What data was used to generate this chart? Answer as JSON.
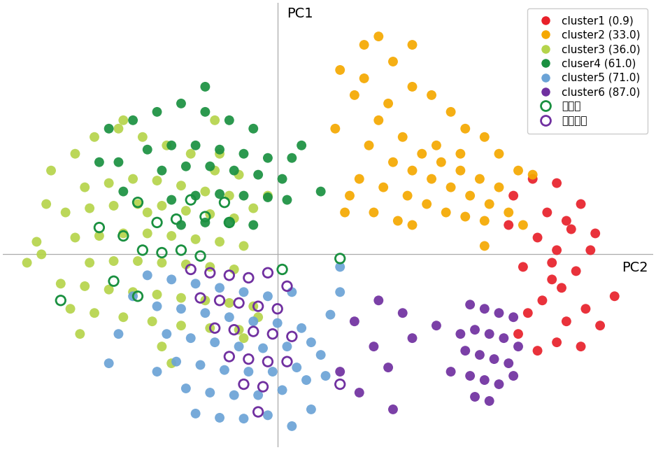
{
  "clusters": [
    {
      "name": "cluster1 (0.9)",
      "color": "#e8202a",
      "points": [
        [
          4.5,
          0.9
        ],
        [
          5.0,
          0.85
        ],
        [
          5.5,
          0.6
        ],
        [
          4.8,
          0.5
        ],
        [
          5.2,
          0.4
        ],
        [
          5.3,
          0.3
        ],
        [
          4.6,
          0.2
        ],
        [
          5.0,
          0.05
        ],
        [
          5.7,
          0.05
        ],
        [
          4.9,
          -0.1
        ],
        [
          4.3,
          -0.15
        ],
        [
          5.4,
          -0.2
        ],
        [
          5.1,
          -0.4
        ],
        [
          4.7,
          -0.55
        ],
        [
          5.6,
          -0.65
        ],
        [
          4.4,
          -0.7
        ],
        [
          5.2,
          -0.8
        ],
        [
          5.9,
          -0.85
        ],
        [
          4.2,
          -0.95
        ],
        [
          5.0,
          -1.05
        ],
        [
          5.5,
          -1.1
        ],
        [
          4.6,
          -1.15
        ],
        [
          4.9,
          -0.3
        ],
        [
          4.1,
          0.7
        ],
        [
          5.8,
          0.25
        ],
        [
          6.2,
          -0.5
        ],
        [
          4.0,
          0.35
        ]
      ]
    },
    {
      "name": "cluster2 (33.0)",
      "color": "#f5a800",
      "points": [
        [
          0.5,
          2.2
        ],
        [
          1.0,
          2.5
        ],
        [
          1.6,
          2.3
        ],
        [
          2.0,
          2.0
        ],
        [
          2.4,
          1.9
        ],
        [
          2.8,
          1.7
        ],
        [
          3.1,
          1.5
        ],
        [
          3.5,
          1.4
        ],
        [
          3.8,
          1.2
        ],
        [
          0.8,
          1.9
        ],
        [
          1.3,
          1.6
        ],
        [
          1.8,
          1.4
        ],
        [
          2.2,
          1.2
        ],
        [
          2.6,
          1.1
        ],
        [
          3.0,
          1.0
        ],
        [
          3.4,
          0.9
        ],
        [
          3.8,
          0.8
        ],
        [
          1.1,
          1.3
        ],
        [
          1.6,
          1.1
        ],
        [
          2.0,
          1.0
        ],
        [
          2.4,
          0.9
        ],
        [
          2.8,
          0.8
        ],
        [
          3.2,
          0.7
        ],
        [
          3.6,
          0.6
        ],
        [
          0.9,
          0.9
        ],
        [
          1.4,
          0.8
        ],
        [
          1.9,
          0.7
        ],
        [
          2.3,
          0.6
        ],
        [
          2.7,
          0.5
        ],
        [
          3.1,
          0.45
        ],
        [
          1.2,
          0.5
        ],
        [
          1.7,
          0.4
        ],
        [
          0.6,
          0.5
        ],
        [
          3.5,
          0.4
        ],
        [
          4.0,
          0.5
        ],
        [
          4.3,
          0.35
        ],
        [
          0.4,
          1.5
        ],
        [
          1.3,
          2.6
        ],
        [
          0.7,
          0.7
        ],
        [
          2.5,
          1.3
        ],
        [
          4.2,
          1.0
        ],
        [
          3.5,
          0.1
        ],
        [
          2.0,
          0.35
        ],
        [
          4.5,
          0.95
        ],
        [
          1.0,
          2.1
        ],
        [
          2.0,
          2.5
        ],
        [
          1.5,
          1.8
        ],
        [
          3.0,
          1.2
        ]
      ]
    },
    {
      "name": "cluster3 (36.0)",
      "color": "#b5d44b",
      "points": [
        [
          -5.5,
          1.0
        ],
        [
          -5.0,
          1.2
        ],
        [
          -4.6,
          1.4
        ],
        [
          -4.1,
          1.5
        ],
        [
          -3.6,
          1.4
        ],
        [
          -3.1,
          1.3
        ],
        [
          -2.6,
          1.2
        ],
        [
          -2.1,
          1.0
        ],
        [
          -1.6,
          0.95
        ],
        [
          -4.8,
          0.8
        ],
        [
          -4.3,
          0.85
        ],
        [
          -3.8,
          0.9
        ],
        [
          -3.3,
          0.88
        ],
        [
          -2.8,
          0.82
        ],
        [
          -2.3,
          0.75
        ],
        [
          -1.8,
          0.7
        ],
        [
          -5.2,
          0.5
        ],
        [
          -4.7,
          0.55
        ],
        [
          -4.2,
          0.58
        ],
        [
          -3.7,
          0.6
        ],
        [
          -3.2,
          0.58
        ],
        [
          -2.7,
          0.52
        ],
        [
          -2.2,
          0.48
        ],
        [
          -1.7,
          0.43
        ],
        [
          -5.0,
          0.2
        ],
        [
          -4.5,
          0.22
        ],
        [
          -4.0,
          0.25
        ],
        [
          -3.5,
          0.25
        ],
        [
          -3.0,
          0.22
        ],
        [
          -2.5,
          0.18
        ],
        [
          -2.0,
          0.15
        ],
        [
          -1.5,
          0.1
        ],
        [
          -4.7,
          -0.1
        ],
        [
          -4.2,
          -0.08
        ],
        [
          -3.7,
          -0.08
        ],
        [
          -3.2,
          -0.1
        ],
        [
          -2.7,
          -0.12
        ],
        [
          -2.2,
          -0.15
        ],
        [
          -1.7,
          -0.18
        ],
        [
          -5.3,
          -0.35
        ],
        [
          -4.8,
          -0.38
        ],
        [
          -4.3,
          -0.42
        ],
        [
          -3.8,
          -0.45
        ],
        [
          -3.3,
          -0.48
        ],
        [
          -2.8,
          -0.52
        ],
        [
          -2.3,
          -0.55
        ],
        [
          -1.8,
          -0.58
        ],
        [
          -1.3,
          -0.62
        ],
        [
          -5.1,
          -0.65
        ],
        [
          -4.6,
          -0.7
        ],
        [
          -4.0,
          -0.75
        ],
        [
          -3.4,
          -0.8
        ],
        [
          -2.8,
          -0.85
        ],
        [
          -2.2,
          -0.88
        ],
        [
          -1.6,
          -0.9
        ],
        [
          -3.5,
          0.5
        ],
        [
          -2.1,
          1.6
        ],
        [
          -3.2,
          -1.1
        ],
        [
          -5.6,
          0.6
        ],
        [
          -1.2,
          -0.75
        ],
        [
          -1.3,
          0.55
        ],
        [
          -5.7,
          0.0
        ],
        [
          -4.9,
          -0.95
        ],
        [
          -1.5,
          -1.0
        ],
        [
          -1.0,
          0.7
        ],
        [
          -5.8,
          0.15
        ],
        [
          -4.0,
          1.6
        ],
        [
          -3.0,
          -1.3
        ],
        [
          -2.0,
          1.2
        ],
        [
          -6.0,
          -0.1
        ]
      ]
    },
    {
      "name": "cluser4 (61.0)",
      "color": "#1a9040",
      "points": [
        [
          -3.8,
          1.6
        ],
        [
          -3.3,
          1.7
        ],
        [
          -2.8,
          1.8
        ],
        [
          -2.3,
          1.7
        ],
        [
          -1.8,
          1.6
        ],
        [
          -1.3,
          1.5
        ],
        [
          -3.5,
          1.25
        ],
        [
          -3.0,
          1.3
        ],
        [
          -2.5,
          1.3
        ],
        [
          -2.0,
          1.25
        ],
        [
          -1.5,
          1.2
        ],
        [
          -1.0,
          1.15
        ],
        [
          -3.2,
          1.0
        ],
        [
          -2.7,
          1.05
        ],
        [
          -2.2,
          1.05
        ],
        [
          -1.7,
          1.0
        ],
        [
          -1.2,
          0.95
        ],
        [
          -0.7,
          0.9
        ],
        [
          -3.0,
          0.65
        ],
        [
          -2.5,
          0.7
        ],
        [
          -2.0,
          0.72
        ],
        [
          -1.5,
          0.7
        ],
        [
          -1.0,
          0.68
        ],
        [
          -2.8,
          0.35
        ],
        [
          -2.3,
          0.38
        ],
        [
          -1.8,
          0.38
        ],
        [
          -1.3,
          0.35
        ],
        [
          -4.1,
          1.1
        ],
        [
          -4.3,
          1.5
        ],
        [
          -4.0,
          0.75
        ],
        [
          -0.5,
          1.15
        ],
        [
          -0.6,
          0.65
        ],
        [
          0.1,
          0.75
        ],
        [
          -0.3,
          1.3
        ],
        [
          -4.5,
          1.1
        ],
        [
          -2.3,
          2.0
        ]
      ]
    },
    {
      "name": "cluster5 (71.0)",
      "color": "#6ba3d6",
      "points": [
        [
          -3.5,
          -0.25
        ],
        [
          -3.0,
          -0.3
        ],
        [
          -2.5,
          -0.35
        ],
        [
          -2.0,
          -0.4
        ],
        [
          -1.5,
          -0.45
        ],
        [
          -1.0,
          -0.5
        ],
        [
          -0.5,
          -0.45
        ],
        [
          -3.3,
          -0.62
        ],
        [
          -2.8,
          -0.65
        ],
        [
          -2.3,
          -0.7
        ],
        [
          -1.8,
          -0.75
        ],
        [
          -1.3,
          -0.8
        ],
        [
          -0.8,
          -0.82
        ],
        [
          -3.1,
          -0.95
        ],
        [
          -2.6,
          -1.0
        ],
        [
          -2.1,
          -1.05
        ],
        [
          -1.6,
          -1.1
        ],
        [
          -1.1,
          -1.12
        ],
        [
          -0.6,
          -1.1
        ],
        [
          -0.1,
          -1.05
        ],
        [
          -2.9,
          -1.28
        ],
        [
          -2.4,
          -1.32
        ],
        [
          -1.9,
          -1.38
        ],
        [
          -1.4,
          -1.4
        ],
        [
          -0.9,
          -1.4
        ],
        [
          -0.4,
          -1.35
        ],
        [
          0.1,
          -1.2
        ],
        [
          -2.7,
          -1.6
        ],
        [
          -2.2,
          -1.65
        ],
        [
          -1.7,
          -1.68
        ],
        [
          -1.2,
          -1.68
        ],
        [
          -0.7,
          -1.62
        ],
        [
          -0.2,
          -1.5
        ],
        [
          -2.5,
          -1.9
        ],
        [
          -2.0,
          -1.95
        ],
        [
          -1.5,
          -1.96
        ],
        [
          -1.0,
          -1.92
        ],
        [
          -3.8,
          -0.5
        ],
        [
          -4.1,
          -0.95
        ],
        [
          0.3,
          -0.72
        ],
        [
          0.5,
          -0.45
        ],
        [
          0.2,
          -1.45
        ],
        [
          -4.3,
          -1.3
        ],
        [
          -0.1,
          -1.85
        ],
        [
          -3.3,
          -1.4
        ],
        [
          -0.5,
          -2.05
        ],
        [
          -0.3,
          -0.88
        ],
        [
          0.5,
          -0.15
        ]
      ]
    },
    {
      "name": "cluster6 (87.0)",
      "color": "#7030a0",
      "points": [
        [
          3.2,
          -0.6
        ],
        [
          3.5,
          -0.65
        ],
        [
          3.8,
          -0.7
        ],
        [
          4.1,
          -0.75
        ],
        [
          3.3,
          -0.9
        ],
        [
          3.6,
          -0.95
        ],
        [
          3.9,
          -1.0
        ],
        [
          3.1,
          -1.15
        ],
        [
          3.4,
          -1.2
        ],
        [
          3.7,
          -1.25
        ],
        [
          4.0,
          -1.3
        ],
        [
          3.2,
          -1.45
        ],
        [
          3.5,
          -1.5
        ],
        [
          3.8,
          -1.55
        ],
        [
          3.3,
          -1.7
        ],
        [
          3.6,
          -1.75
        ],
        [
          3.0,
          -0.95
        ],
        [
          4.2,
          -1.1
        ],
        [
          2.8,
          -1.4
        ],
        [
          4.1,
          -1.45
        ],
        [
          0.8,
          -0.8
        ],
        [
          1.2,
          -1.1
        ],
        [
          0.5,
          -1.4
        ],
        [
          1.5,
          -1.35
        ],
        [
          0.9,
          -1.65
        ],
        [
          1.8,
          -0.7
        ],
        [
          1.3,
          -0.55
        ],
        [
          2.0,
          -1.0
        ],
        [
          1.6,
          -1.85
        ],
        [
          2.5,
          -0.85
        ]
      ]
    }
  ],
  "adult_circles": [
    [
      -3.7,
      0.62
    ],
    [
      -3.3,
      0.38
    ],
    [
      -2.9,
      0.42
    ],
    [
      -2.6,
      0.65
    ],
    [
      -2.3,
      0.45
    ],
    [
      -1.9,
      0.62
    ],
    [
      -4.0,
      0.22
    ],
    [
      -3.6,
      0.05
    ],
    [
      -3.2,
      0.02
    ],
    [
      -2.8,
      0.05
    ],
    [
      -2.4,
      -0.02
    ],
    [
      -4.5,
      0.32
    ],
    [
      -1.8,
      0.38
    ],
    [
      -4.2,
      -0.32
    ],
    [
      -5.3,
      -0.55
    ],
    [
      -3.7,
      -0.5
    ],
    [
      -0.7,
      -0.18
    ],
    [
      0.5,
      -0.05
    ]
  ],
  "elder_circles": [
    [
      -2.6,
      -0.18
    ],
    [
      -2.2,
      -0.22
    ],
    [
      -1.8,
      -0.25
    ],
    [
      -1.4,
      -0.28
    ],
    [
      -1.0,
      -0.22
    ],
    [
      -0.6,
      -0.38
    ],
    [
      -2.4,
      -0.52
    ],
    [
      -2.0,
      -0.55
    ],
    [
      -1.6,
      -0.58
    ],
    [
      -1.2,
      -0.62
    ],
    [
      -0.8,
      -0.65
    ],
    [
      -2.1,
      -0.88
    ],
    [
      -1.7,
      -0.9
    ],
    [
      -1.3,
      -0.92
    ],
    [
      -0.9,
      -0.95
    ],
    [
      -0.5,
      -0.98
    ],
    [
      -1.8,
      -1.22
    ],
    [
      -1.4,
      -1.25
    ],
    [
      -1.0,
      -1.28
    ],
    [
      -0.6,
      -1.28
    ],
    [
      -1.5,
      -1.55
    ],
    [
      -1.1,
      -1.58
    ],
    [
      -1.2,
      -1.88
    ],
    [
      0.5,
      -1.55
    ]
  ],
  "adult_circle_color": "#1a9040",
  "elder_circle_color": "#7030a0",
  "marker_size": 100,
  "open_marker_size": 95,
  "open_linewidth": 2.0,
  "xlim": [
    -6.5,
    7.0
  ],
  "ylim": [
    -2.3,
    3.0
  ],
  "vline_x": -0.8,
  "hline_y": 0.0,
  "legend_fontsize": 11,
  "axis_label_fontsize": 14,
  "pc1_label": "PC1",
  "pc2_label": "PC2",
  "adult_label": "成人型",
  "elder_label": "高齢者型"
}
